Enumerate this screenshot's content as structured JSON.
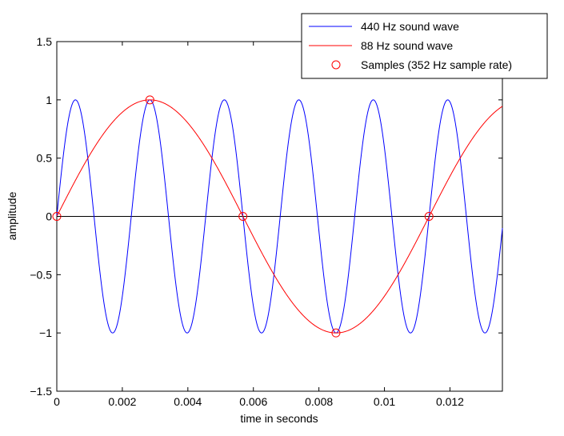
{
  "chart_data": {
    "type": "line",
    "xlabel": "time in seconds",
    "ylabel": "amplitude",
    "xlim": [
      0,
      0.0136
    ],
    "ylim": [
      -1.5,
      1.5
    ],
    "xticks": [
      0,
      0.002,
      0.004,
      0.006,
      0.008,
      0.01,
      0.012
    ],
    "xtick_labels": [
      "0",
      "0.002",
      "0.004",
      "0.006",
      "0.008",
      "0.01",
      "0.012"
    ],
    "yticks": [
      1.5,
      1,
      0.5,
      0,
      -0.5,
      -1,
      -1.5
    ],
    "ytick_labels": [
      "1.5",
      "1",
      "0.5",
      "0",
      "−0.5",
      "−1",
      "−1.5"
    ],
    "legend_position": "top-right",
    "series": [
      {
        "name": "440 Hz sound wave",
        "kind": "line",
        "frequency_hz": 440,
        "color": "#0000ff"
      },
      {
        "name": "88 Hz sound wave",
        "kind": "line",
        "frequency_hz": 88,
        "color": "#ff0000"
      },
      {
        "name": "Samples (352 Hz sample rate)",
        "kind": "markers",
        "marker": "circle",
        "color": "#ff0000",
        "points": [
          {
            "x": 0,
            "y": 0
          },
          {
            "x": 0.00284,
            "y": 1
          },
          {
            "x": 0.00568,
            "y": 0
          },
          {
            "x": 0.00852,
            "y": -1
          },
          {
            "x": 0.01136,
            "y": 0
          }
        ]
      }
    ],
    "zero_line": {
      "y": 0,
      "color": "#000000"
    }
  }
}
